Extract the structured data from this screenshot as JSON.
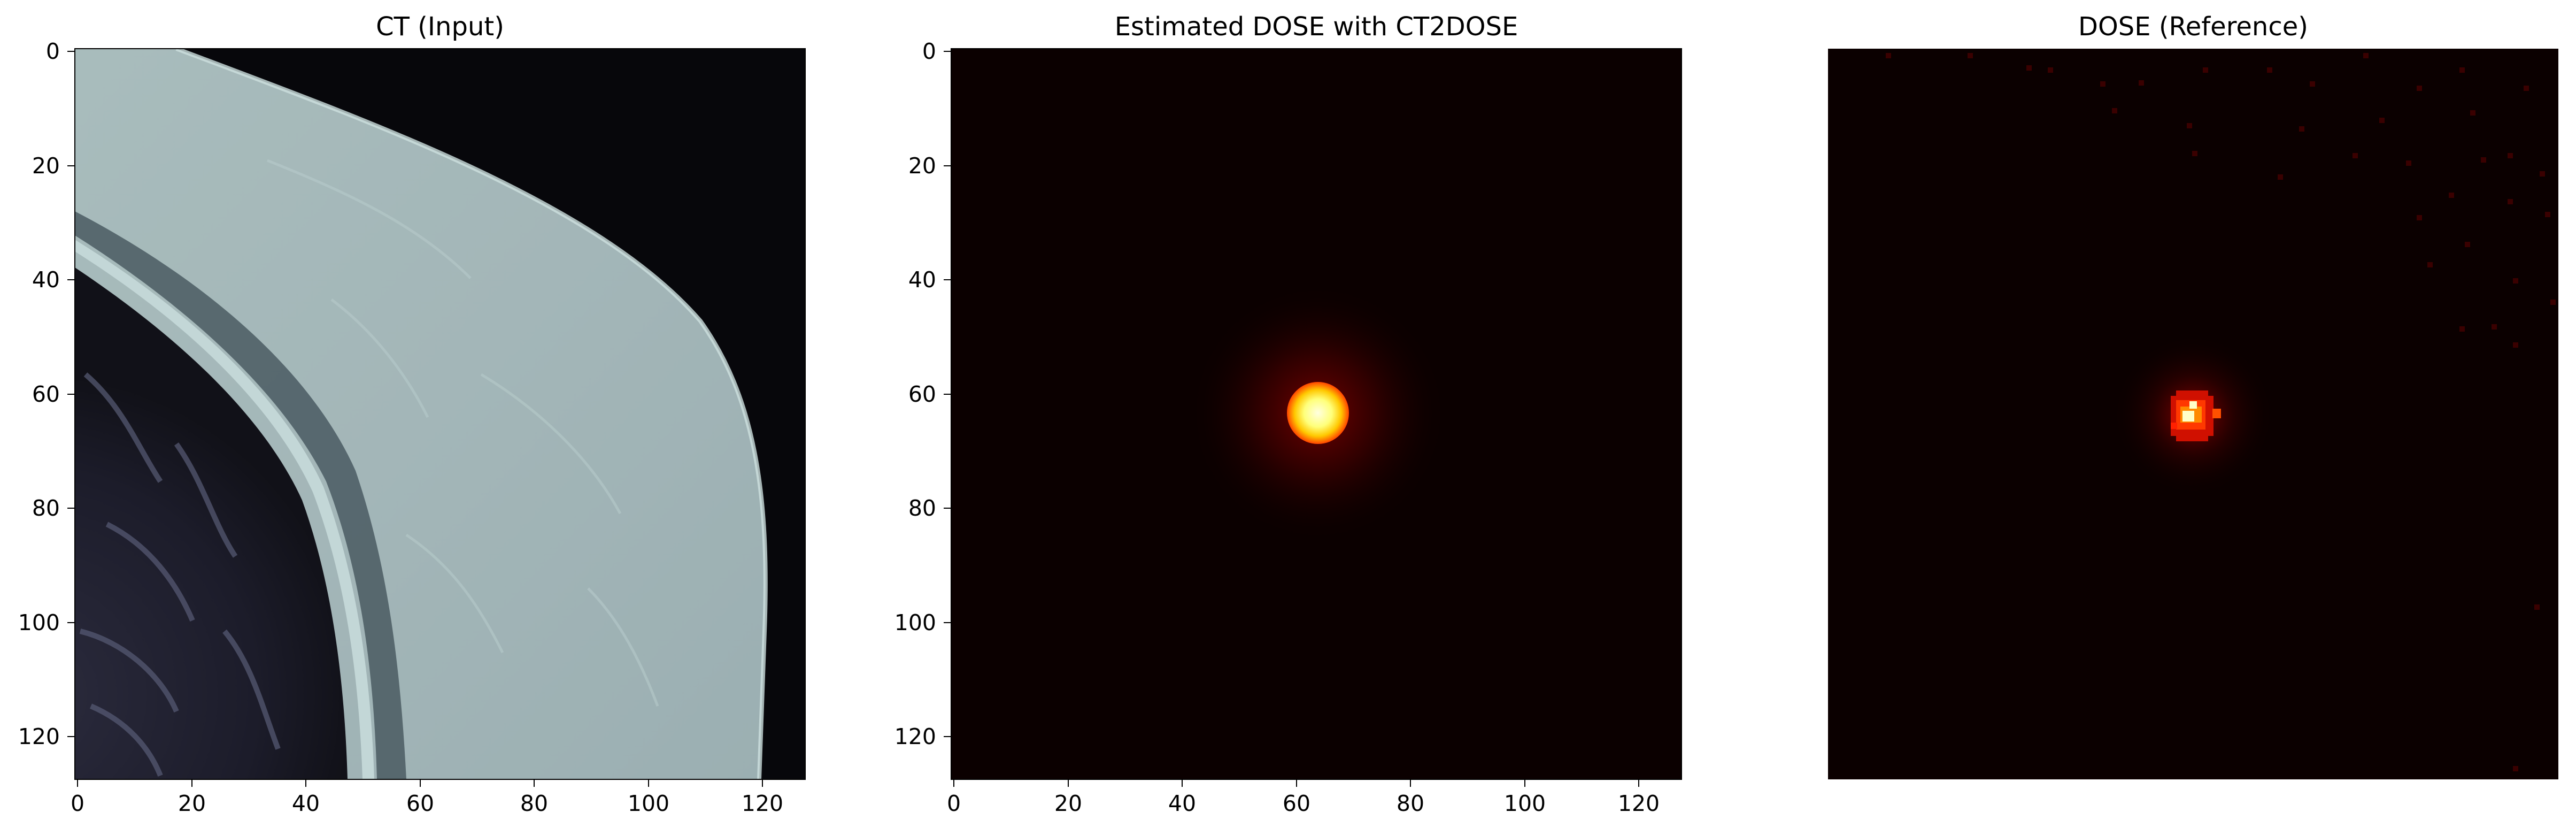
{
  "figure": {
    "panels": [
      {
        "id": "ct",
        "title": "CT (Input)",
        "colormap": "bone",
        "show_axes": true,
        "x_range": [
          0,
          127
        ],
        "y_range": [
          0,
          127
        ],
        "xticks": [
          "0",
          "20",
          "40",
          "60",
          "80",
          "100",
          "120"
        ],
        "yticks": [
          "0",
          "20",
          "40",
          "60",
          "80",
          "100",
          "120"
        ]
      },
      {
        "id": "estimated-dose",
        "title": "Estimated DOSE with CT2DOSE",
        "colormap": "hot",
        "show_axes": true,
        "x_range": [
          0,
          127
        ],
        "y_range": [
          0,
          127
        ],
        "xticks": [
          "0",
          "20",
          "40",
          "60",
          "80",
          "100",
          "120"
        ],
        "yticks": [
          "0",
          "20",
          "40",
          "60",
          "80",
          "100",
          "120"
        ]
      },
      {
        "id": "reference-dose",
        "title": "DOSE (Reference)",
        "colormap": "hot",
        "show_axes": false
      }
    ]
  }
}
